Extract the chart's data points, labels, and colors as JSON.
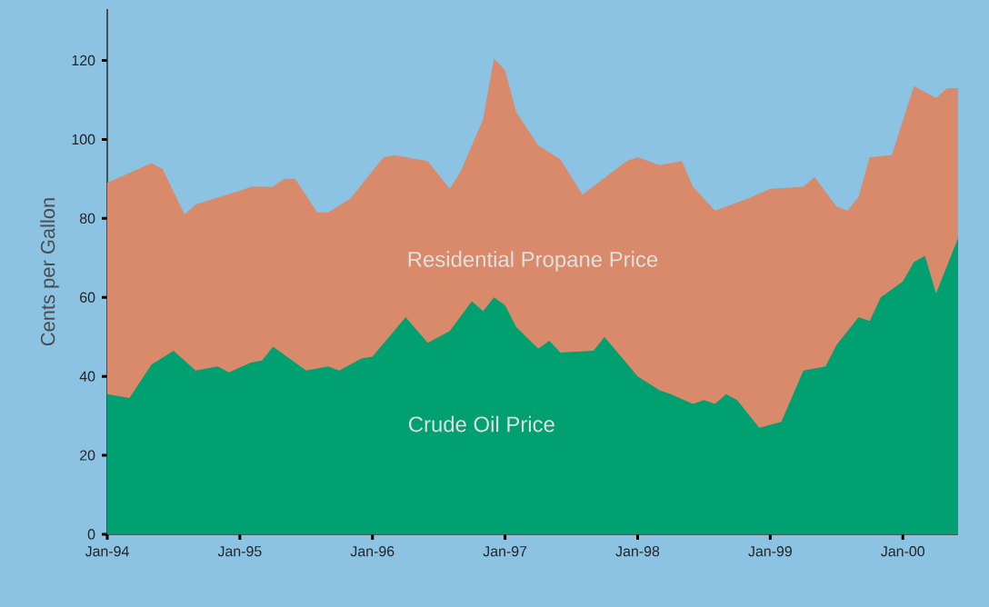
{
  "chart_data": {
    "type": "area",
    "ylabel": "Cents per Gallon",
    "xlim": [
      "1994-01",
      "2000-06"
    ],
    "ylim": [
      0,
      133
    ],
    "xticks": [
      {
        "value": "1994-01",
        "label": "Jan-94"
      },
      {
        "value": "1995-01",
        "label": "Jan-95"
      },
      {
        "value": "1996-01",
        "label": "Jan-96"
      },
      {
        "value": "1997-01",
        "label": "Jan-97"
      },
      {
        "value": "1998-01",
        "label": "Jan-98"
      },
      {
        "value": "1999-01",
        "label": "Jan-99"
      },
      {
        "value": "2000-01",
        "label": "Jan-00"
      }
    ],
    "yticks": [
      0,
      20,
      40,
      60,
      80,
      100,
      120
    ],
    "series": [
      {
        "name": "Residential Propane Price",
        "color": "#d98a6a",
        "x": [
          "1994-01",
          "1994-03",
          "1994-05",
          "1994-06",
          "1994-08",
          "1994-09",
          "1995-01",
          "1995-02",
          "1995-04",
          "1995-05",
          "1995-06",
          "1995-08",
          "1995-09",
          "1995-11",
          "1996-02",
          "1996-03",
          "1996-06",
          "1996-08",
          "1996-09",
          "1996-11",
          "1996-12",
          "1997-01",
          "1997-02",
          "1997-04",
          "1997-06",
          "1997-08",
          "1997-12",
          "1998-01",
          "1998-03",
          "1998-05",
          "1998-06",
          "1998-08",
          "1998-11",
          "1999-01",
          "1999-04",
          "1999-05",
          "1999-07",
          "1999-08",
          "1999-09",
          "1999-10",
          "1999-12",
          "2000-02",
          "2000-04",
          "2000-05",
          "2000-06"
        ],
        "values": [
          89,
          91.5,
          94,
          92.5,
          81,
          83.5,
          87,
          88,
          88,
          90,
          90,
          81.5,
          81.5,
          85,
          95.5,
          96,
          94.5,
          87.5,
          92,
          105,
          120.5,
          117.5,
          107,
          98.5,
          95,
          86,
          94.5,
          95.5,
          93.5,
          94.5,
          88,
          82,
          85,
          87.5,
          88,
          90.5,
          83,
          82,
          85.5,
          95.5,
          96,
          113.5,
          110.5,
          113,
          113
        ]
      },
      {
        "name": "Crude Oil Price",
        "color": "#00a070",
        "x": [
          "1994-01",
          "1994-03",
          "1994-05",
          "1994-07",
          "1994-09",
          "1994-11",
          "1994-12",
          "1995-02",
          "1995-03",
          "1995-04",
          "1995-07",
          "1995-09",
          "1995-10",
          "1995-12",
          "1996-01",
          "1996-04",
          "1996-06",
          "1996-08",
          "1996-10",
          "1996-11",
          "1996-12",
          "1997-01",
          "1997-02",
          "1997-04",
          "1997-05",
          "1997-06",
          "1997-09",
          "1997-10",
          "1998-01",
          "1998-03",
          "1998-04",
          "1998-06",
          "1998-07",
          "1998-08",
          "1998-09",
          "1998-10",
          "1998-12",
          "1999-02",
          "1999-04",
          "1999-06",
          "1999-07",
          "1999-09",
          "1999-10",
          "1999-11",
          "2000-01",
          "2000-02",
          "2000-03",
          "2000-04",
          "2000-06"
        ],
        "values": [
          35.5,
          34.5,
          43,
          46.5,
          41.5,
          42.5,
          41,
          43.5,
          44,
          47.5,
          41.5,
          42.5,
          41.5,
          44.5,
          45,
          55,
          48.5,
          51.5,
          59,
          56.5,
          60,
          58,
          52.5,
          47,
          49,
          46,
          46.5,
          50,
          40,
          36.5,
          35.5,
          33,
          34,
          33,
          35.5,
          34,
          27,
          28.5,
          41.5,
          42.5,
          48,
          55,
          54,
          60,
          64,
          69,
          70.5,
          61,
          75
        ]
      }
    ]
  }
}
